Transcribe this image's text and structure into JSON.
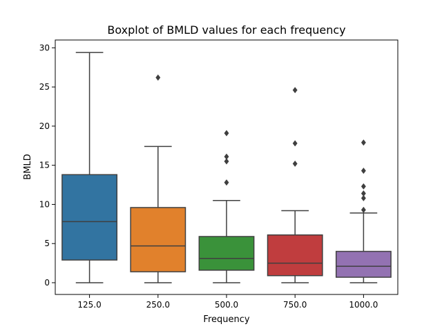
{
  "chart_data": {
    "type": "boxplot",
    "title": "Boxplot of BMLD values for each frequency",
    "xlabel": "Frequency",
    "ylabel": "BMLD",
    "ylim": [
      -1.5,
      31.0
    ],
    "yticks": [
      0,
      5,
      10,
      15,
      20,
      25,
      30
    ],
    "grid": false,
    "categories": [
      "125.0",
      "250.0",
      "500.0",
      "750.0",
      "1000.0"
    ],
    "boxes": [
      {
        "category": "125.0",
        "color": "#3274a1",
        "whisker_low": 0,
        "q1": 2.9,
        "median": 7.8,
        "q3": 13.8,
        "whisker_high": 29.4,
        "outliers": []
      },
      {
        "category": "250.0",
        "color": "#e1812c",
        "whisker_low": 0,
        "q1": 1.4,
        "median": 4.7,
        "q3": 9.6,
        "whisker_high": 17.4,
        "outliers": [
          26.2
        ]
      },
      {
        "category": "500.0",
        "color": "#3a923a",
        "whisker_low": 0,
        "q1": 1.6,
        "median": 3.1,
        "q3": 5.9,
        "whisker_high": 10.5,
        "outliers": [
          12.8,
          15.5,
          16.1,
          19.1
        ]
      },
      {
        "category": "750.0",
        "color": "#c03d3e",
        "whisker_low": 0,
        "q1": 0.9,
        "median": 2.5,
        "q3": 6.1,
        "whisker_high": 9.2,
        "outliers": [
          15.2,
          17.8,
          24.6
        ]
      },
      {
        "category": "1000.0",
        "color": "#9372b2",
        "whisker_low": 0,
        "q1": 0.7,
        "median": 2.1,
        "q3": 4.0,
        "whisker_high": 8.9,
        "outliers": [
          9.3,
          10.8,
          11.4,
          12.3,
          14.3,
          17.9
        ]
      }
    ]
  }
}
